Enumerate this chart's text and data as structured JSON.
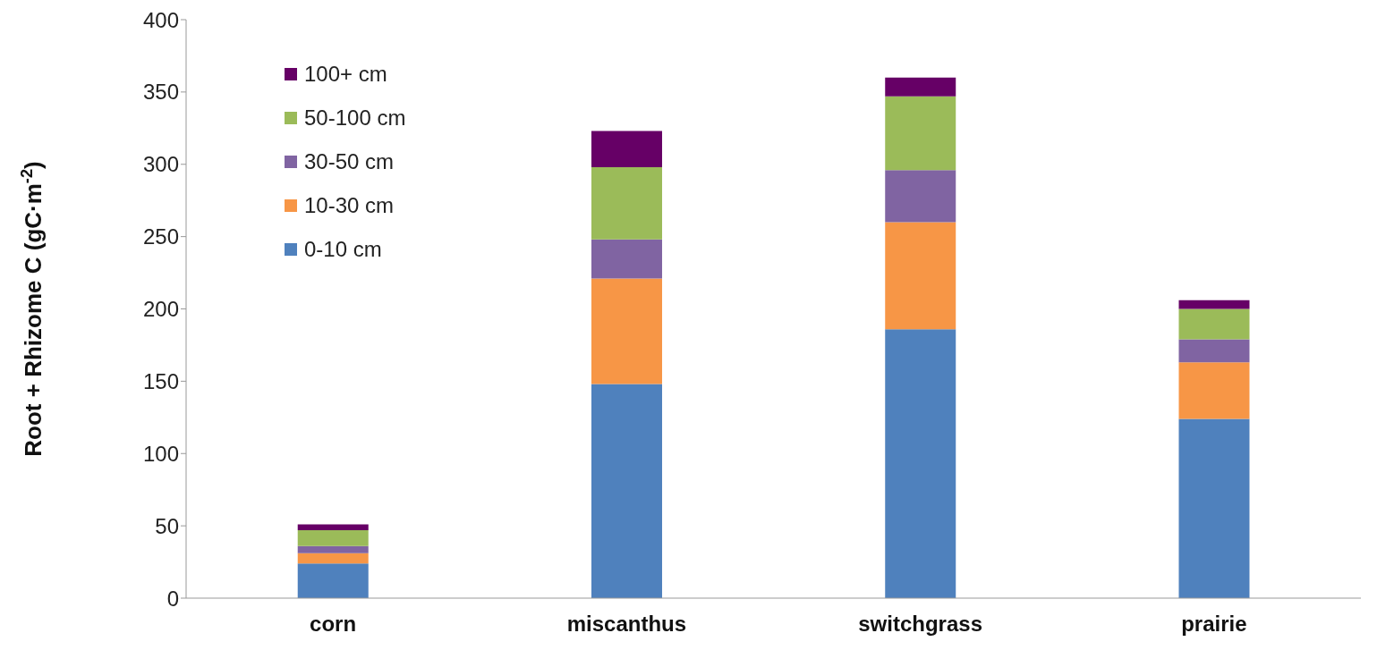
{
  "chart_data": {
    "type": "bar",
    "stacked": true,
    "categories": [
      "corn",
      "miscanthus",
      "switchgrass",
      "prairie"
    ],
    "ylabel": "Root + Rhizome C (gC·m$^{-2}$)",
    "ylim": [
      0,
      400
    ],
    "yticks": [
      0,
      50,
      100,
      150,
      200,
      250,
      300,
      350,
      400
    ],
    "grid": false,
    "legend": "top left",
    "series": [
      {
        "name": "0-10 cm",
        "color": "#4f81bd",
        "values": [
          24,
          148,
          186,
          124
        ]
      },
      {
        "name": "10-30 cm",
        "color": "#f79646",
        "values": [
          7,
          73,
          74,
          39
        ]
      },
      {
        "name": "30-50 cm",
        "color": "#8064a2",
        "values": [
          5,
          27,
          36,
          16
        ]
      },
      {
        "name": "50-100 cm",
        "color": "#9bbb59",
        "values": [
          11,
          50,
          51,
          21
        ]
      },
      {
        "name": "100+ cm",
        "color": "#660066",
        "values": [
          4,
          25,
          13,
          6
        ]
      }
    ]
  }
}
